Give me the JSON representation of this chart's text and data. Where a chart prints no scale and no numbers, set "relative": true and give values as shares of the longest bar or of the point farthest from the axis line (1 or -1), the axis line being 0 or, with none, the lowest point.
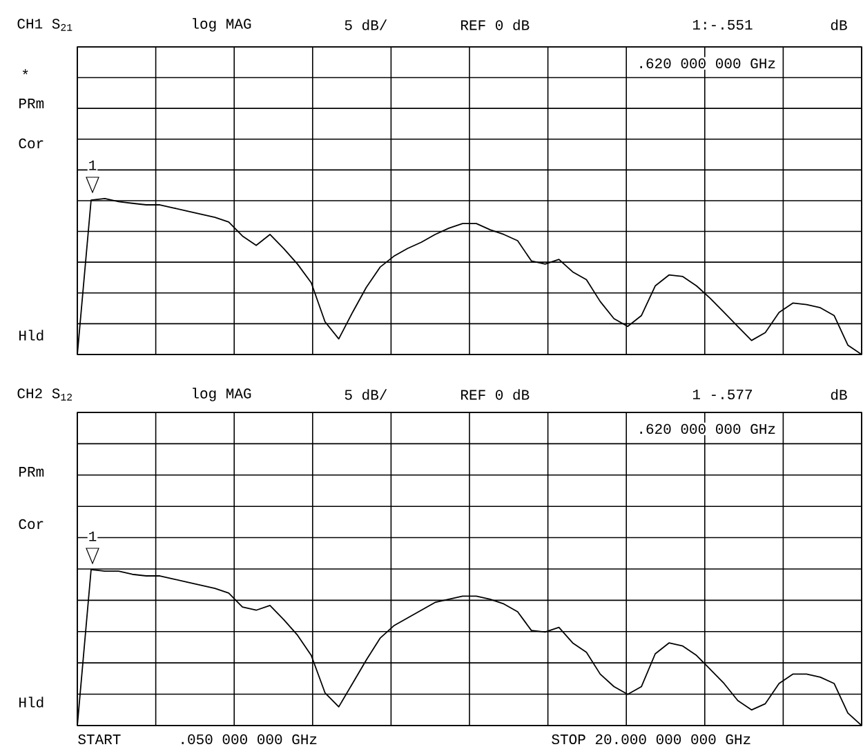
{
  "chart_data": [
    {
      "type": "line",
      "title": "CH1 S$_{21}$",
      "relative": true,
      "grid": true,
      "categories": [
        null,
        null,
        null,
        null,
        null,
        null,
        null,
        null,
        null,
        null,
        null,
        null,
        null,
        null,
        null,
        null,
        null,
        null,
        null,
        null,
        null,
        null,
        null,
        null,
        null,
        null,
        null,
        null,
        null,
        null,
        null,
        null,
        null,
        null,
        null,
        null,
        null,
        null,
        null,
        null,
        null,
        null,
        null,
        null,
        null,
        null,
        null,
        null,
        null,
        null,
        null,
        null,
        null,
        null,
        null,
        null,
        null,
        null
      ],
      "series": [
        {
          "color": "#000000",
          "values": [
            0,
            0.99,
            1.0,
            0.98,
            0.97,
            0.96,
            0.96,
            0.94,
            0.92,
            0.9,
            0.88,
            0.85,
            0.76,
            0.7,
            0.77,
            0.68,
            0.58,
            0.46,
            0.21,
            0.1,
            0.27,
            0.43,
            0.56,
            0.63,
            0.68,
            0.72,
            0.77,
            0.81,
            0.84,
            0.84,
            0.8,
            0.77,
            0.73,
            0.6,
            0.58,
            0.61,
            0.53,
            0.48,
            0.34,
            0.23,
            0.18,
            0.25,
            0.44,
            0.51,
            0.5,
            0.44,
            0.36,
            0.27,
            0.18,
            0.09,
            0.14,
            0.27,
            0.33,
            0.32,
            0.3,
            0.25,
            0.06,
            0
          ]
        }
      ],
      "annotations": [
        "log MAG",
        "5 dB/",
        "REF 0 dB",
        "1:-.551",
        "dB",
        ".620 000 000 GHz",
        "*",
        "PRm",
        "Cor",
        "Hld",
        "1"
      ]
    },
    {
      "type": "line",
      "title": "CH2 S$_{12}$",
      "relative": true,
      "grid": true,
      "categories": [
        null,
        null,
        null,
        null,
        null,
        null,
        null,
        null,
        null,
        null,
        null,
        null,
        null,
        null,
        null,
        null,
        null,
        null,
        null,
        null,
        null,
        null,
        null,
        null,
        null,
        null,
        null,
        null,
        null,
        null,
        null,
        null,
        null,
        null,
        null,
        null,
        null,
        null,
        null,
        null,
        null,
        null,
        null,
        null,
        null,
        null,
        null,
        null,
        null,
        null,
        null,
        null,
        null,
        null,
        null,
        null,
        null,
        null
      ],
      "series": [
        {
          "color": "#000000",
          "values": [
            0,
            1.0,
            0.99,
            0.99,
            0.97,
            0.96,
            0.96,
            0.94,
            0.92,
            0.9,
            0.88,
            0.85,
            0.76,
            0.74,
            0.77,
            0.68,
            0.58,
            0.45,
            0.21,
            0.12,
            0.27,
            0.42,
            0.56,
            0.64,
            0.69,
            0.74,
            0.79,
            0.81,
            0.83,
            0.83,
            0.81,
            0.78,
            0.73,
            0.61,
            0.6,
            0.63,
            0.53,
            0.47,
            0.33,
            0.25,
            0.2,
            0.25,
            0.46,
            0.53,
            0.51,
            0.45,
            0.36,
            0.27,
            0.16,
            0.1,
            0.14,
            0.27,
            0.33,
            0.33,
            0.31,
            0.27,
            0.08,
            0
          ]
        }
      ],
      "annotations": [
        "log MAG",
        "5 dB/",
        "REF 0 dB",
        "1 -.577",
        "dB",
        ".620 000 000 GHz",
        "PRm",
        "Cor",
        "Hld",
        "START",
        ".050 000 000 GHz",
        "STOP 20.000 000 000 GHz",
        "1"
      ]
    }
  ]
}
